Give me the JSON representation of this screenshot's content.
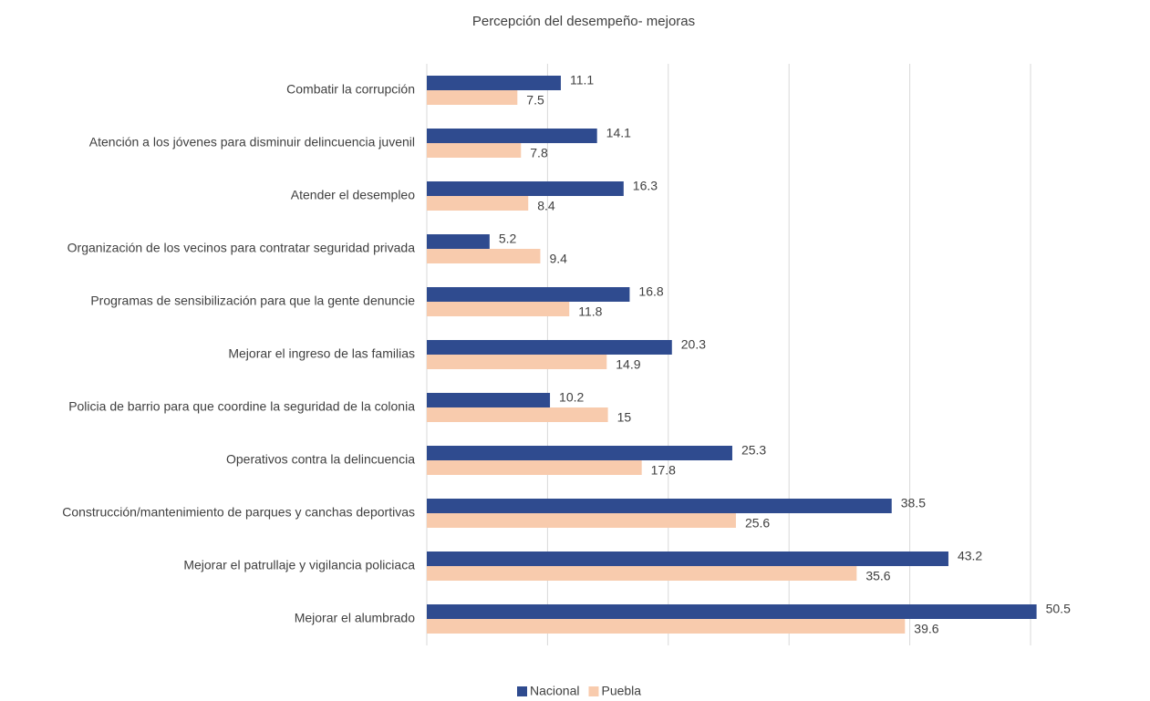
{
  "chart_data": {
    "type": "barh",
    "title": "Percepción del desempeño- mejoras",
    "categories": [
      "Combatir la corrupción",
      "Atención a los jóvenes para disminuir delincuencia juvenil",
      "Atender el desempleo",
      "Organización de los vecinos para contratar seguridad privada",
      "Programas de sensibilización para que la gente denuncie",
      "Mejorar el ingreso de las familias",
      "Policia de barrio para que coordine la seguridad de la colonia",
      "Operativos contra la delincuencia",
      "Construcción/mantenimiento de parques y canchas deportivas",
      "Mejorar el patrullaje y vigilancia policiaca",
      "Mejorar el alumbrado"
    ],
    "series": [
      {
        "name": "Nacional",
        "color": "#2f4b8f",
        "values": [
          11.1,
          14.1,
          16.3,
          5.2,
          16.8,
          20.3,
          10.2,
          25.3,
          38.5,
          43.2,
          50.5
        ]
      },
      {
        "name": "Puebla",
        "color": "#f8cbad",
        "values": [
          7.5,
          7.8,
          8.4,
          9.4,
          11.8,
          14.9,
          15,
          17.8,
          25.6,
          35.6,
          39.6
        ]
      }
    ],
    "xlim": [
      0,
      50
    ],
    "xticks": [
      0,
      10,
      20,
      30,
      40,
      50
    ],
    "grid": true,
    "legend": "bottom"
  }
}
